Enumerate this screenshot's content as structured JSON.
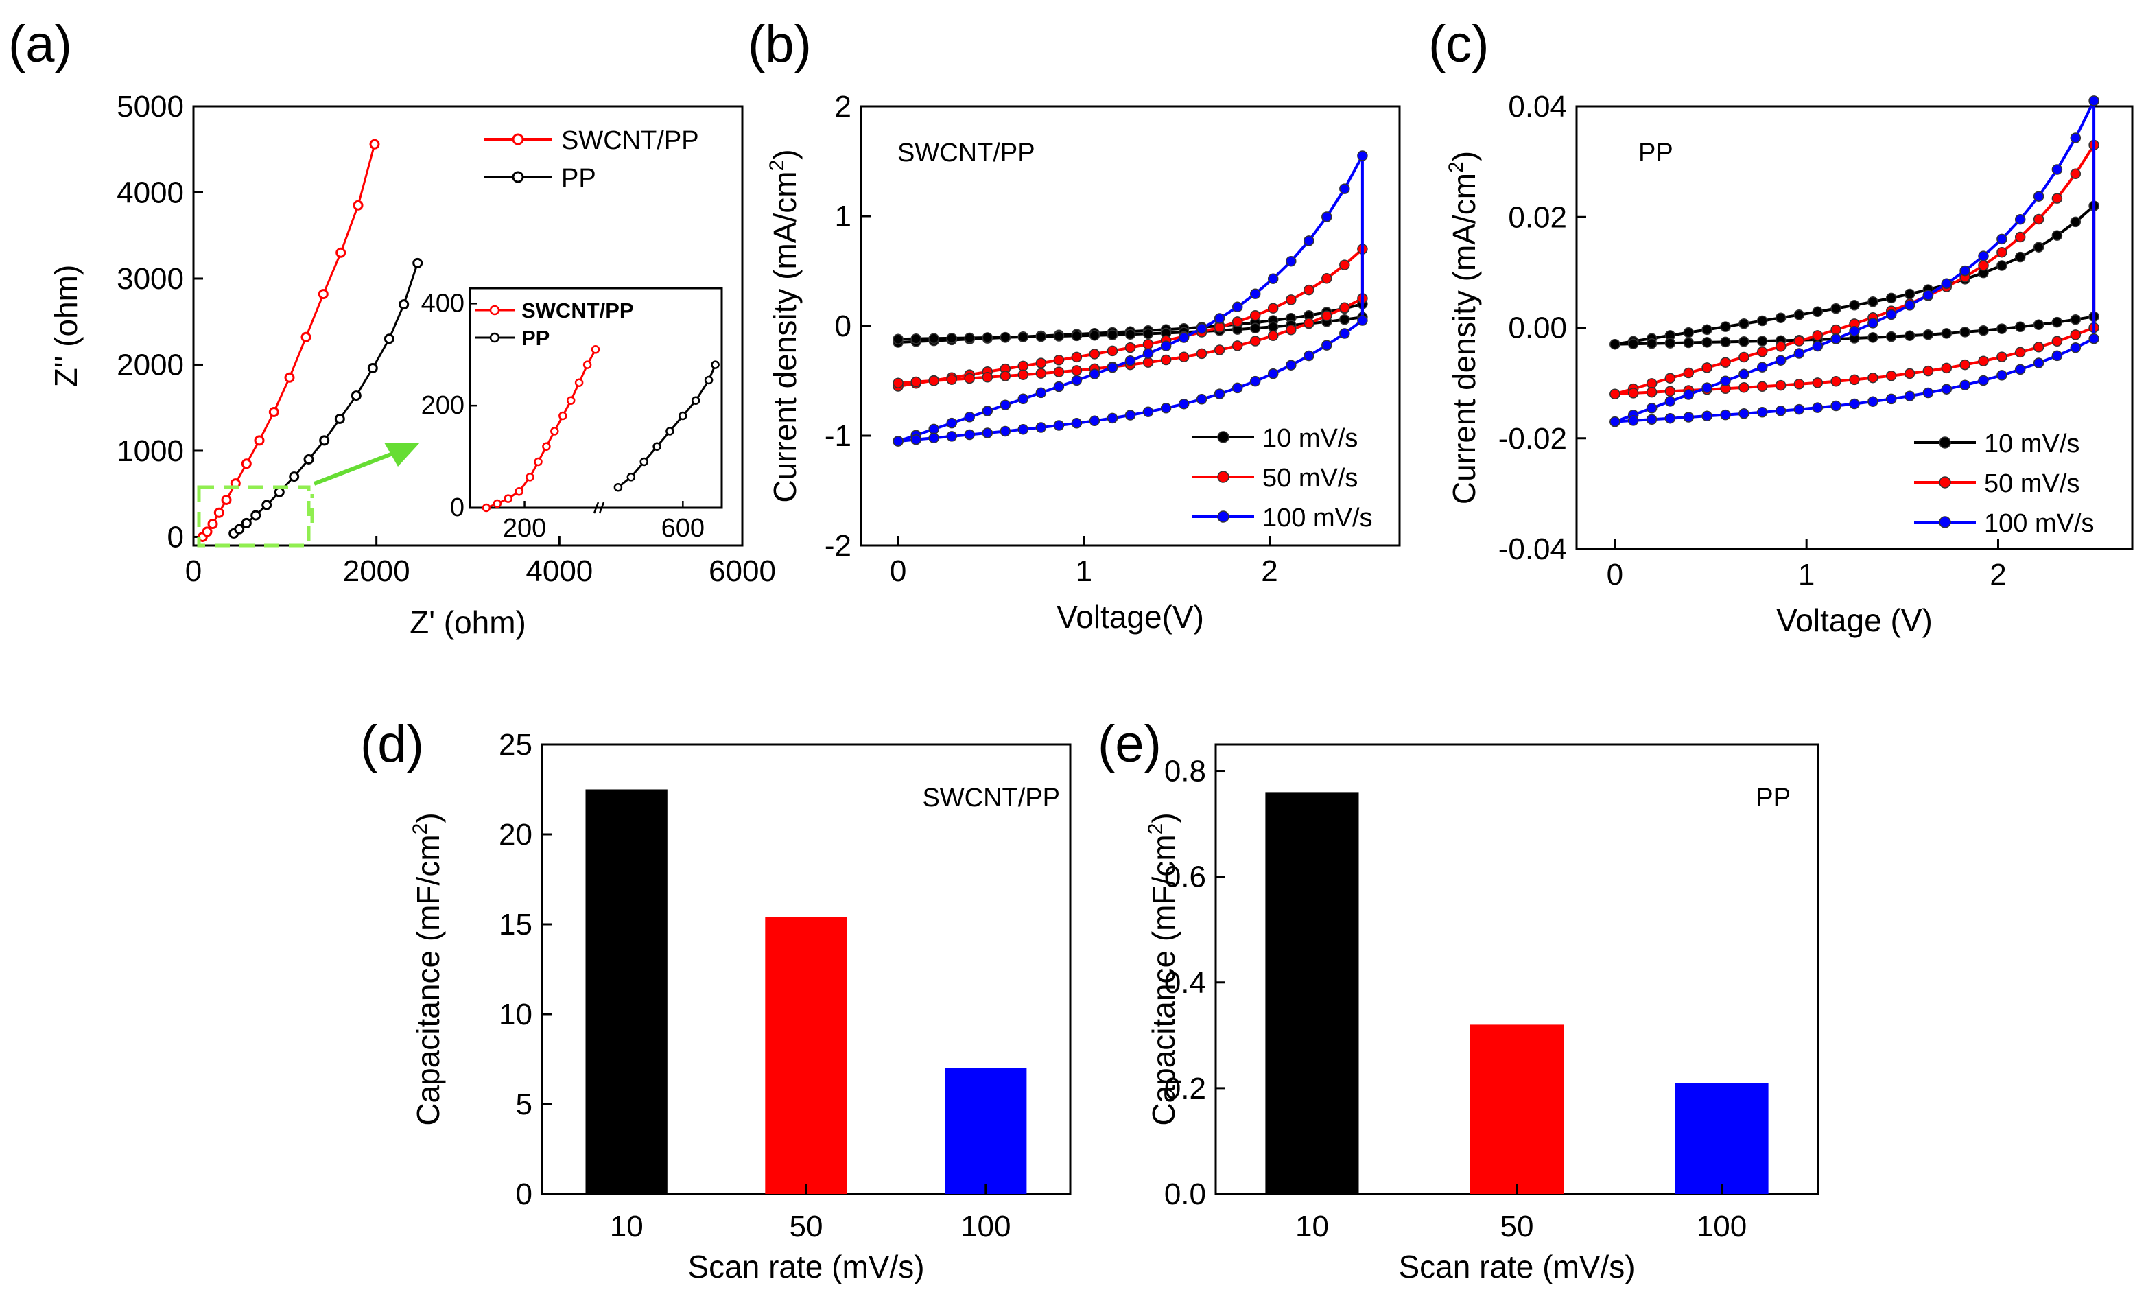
{
  "chart_data": [
    {
      "id": "a",
      "type": "line",
      "panel_label": "(a)",
      "xlabel": "Z' (ohm)",
      "ylabel": "Z'' (ohm)",
      "xlim": [
        0,
        6000
      ],
      "ylim": [
        -100,
        5000
      ],
      "xticks": [
        "0",
        "2000",
        "4000",
        "6000"
      ],
      "yticks": [
        "0",
        "1000",
        "2000",
        "3000",
        "4000",
        "5000"
      ],
      "legend_position": "top-right",
      "series": [
        {
          "name": "SWCNT/PP",
          "color": "#ff0000",
          "marker": "circle",
          "x": [
            100,
            150,
            210,
            280,
            360,
            460,
            580,
            720,
            880,
            1050,
            1230,
            1420,
            1610,
            1800,
            1980
          ],
          "y": [
            0,
            60,
            150,
            280,
            430,
            620,
            850,
            1120,
            1450,
            1850,
            2320,
            2820,
            3300,
            3850,
            4560
          ]
        },
        {
          "name": "PP",
          "color": "#000000",
          "marker": "circle",
          "x": [
            440,
            500,
            580,
            680,
            800,
            940,
            1100,
            1260,
            1430,
            1600,
            1780,
            1960,
            2140,
            2300,
            2450
          ],
          "y": [
            40,
            90,
            160,
            250,
            370,
            520,
            700,
            900,
            1120,
            1370,
            1640,
            1960,
            2300,
            2700,
            3180
          ]
        }
      ],
      "inset": {
        "xticks": [
          "200",
          "600"
        ],
        "yticks": [
          "0",
          "200",
          "400"
        ],
        "ylim": [
          0,
          430
        ],
        "axis_break": true,
        "series": [
          {
            "name": "SWCNT/PP",
            "color": "#ff0000",
            "x": [
              130,
              150,
              170,
              190,
              210,
              225,
              240,
              255,
              270,
              285,
              300,
              315,
              330
            ],
            "y": [
              0,
              8,
              18,
              32,
              60,
              90,
              120,
              150,
              180,
              210,
              245,
              280,
              310
            ]
          },
          {
            "name": "PP",
            "color": "#000000",
            "x": [
              500,
              520,
              540,
              560,
              580,
              600,
              620,
              640,
              650
            ],
            "y": [
              40,
              60,
              90,
              120,
              150,
              180,
              210,
              250,
              280
            ]
          }
        ]
      }
    },
    {
      "id": "b",
      "type": "line",
      "panel_label": "(b)",
      "annotation": "SWCNT/PP",
      "xlabel": "Voltage(V)",
      "ylabel": "Current density (mA/cm",
      "ylabel_sup": "2",
      "ylabel_tail": ")",
      "xlim": [
        -0.2,
        2.7
      ],
      "ylim": [
        -2,
        2
      ],
      "xticks": [
        "0",
        "1",
        "2"
      ],
      "yticks": [
        "-2",
        "-1",
        "0",
        "1",
        "2"
      ],
      "legend_position": "bottom-right",
      "series": [
        {
          "name": "10 mV/s",
          "color": "#000000",
          "anodic_start": -0.15,
          "anodic_end": 0.2,
          "cathodic_end": 0.08,
          "cathodic_start": -0.12
        },
        {
          "name": "50 mV/s",
          "color": "#ff0000",
          "anodic_start": -0.55,
          "anodic_end": 0.7,
          "cathodic_end": 0.25,
          "cathodic_start": -0.52
        },
        {
          "name": "100 mV/s",
          "color": "#0000ff",
          "anodic_start": -1.05,
          "anodic_end": 1.55,
          "cathodic_end": 0.05,
          "cathodic_start": -1.05
        }
      ]
    },
    {
      "id": "c",
      "type": "line",
      "panel_label": "(c)",
      "annotation": "PP",
      "xlabel": "Voltage (V)",
      "ylabel": "Current density (mA/cm",
      "ylabel_sup": "2",
      "ylabel_tail": ")",
      "xlim": [
        -0.2,
        2.7
      ],
      "ylim": [
        -0.04,
        0.04
      ],
      "xticks": [
        "0",
        "1",
        "2"
      ],
      "yticks": [
        "-0.04",
        "-0.02",
        "0.00",
        "0.02",
        "0.04"
      ],
      "legend_position": "bottom-right",
      "series": [
        {
          "name": "10 mV/s",
          "color": "#000000",
          "anodic_start": -0.003,
          "anodic_end": 0.022,
          "cathodic_end": 0.002,
          "cathodic_start": -0.003
        },
        {
          "name": "50 mV/s",
          "color": "#ff0000",
          "anodic_start": -0.012,
          "anodic_end": 0.033,
          "cathodic_end": 0.0,
          "cathodic_start": -0.012
        },
        {
          "name": "100 mV/s",
          "color": "#0000ff",
          "anodic_start": -0.017,
          "anodic_end": 0.041,
          "cathodic_end": -0.002,
          "cathodic_start": -0.017
        }
      ]
    },
    {
      "id": "d",
      "type": "bar",
      "panel_label": "(d)",
      "annotation": "SWCNT/PP",
      "xlabel": "Scan rate (mV/s)",
      "ylabel": "Capacitance (mF/cm",
      "ylabel_sup": "2",
      "ylabel_tail": ")",
      "categories": [
        "10",
        "50",
        "100"
      ],
      "values": [
        22.5,
        15.4,
        7.0
      ],
      "colors": [
        "#000000",
        "#ff0000",
        "#0000ff"
      ],
      "ylim": [
        0,
        25
      ],
      "yticks": [
        "0",
        "5",
        "10",
        "15",
        "20",
        "25"
      ]
    },
    {
      "id": "e",
      "type": "bar",
      "panel_label": "(e)",
      "annotation": "PP",
      "xlabel": "Scan rate (mV/s)",
      "ylabel": "Capacitance (mF/cm",
      "ylabel_sup": "2",
      "ylabel_tail": ")",
      "categories": [
        "10",
        "50",
        "100"
      ],
      "values": [
        0.76,
        0.32,
        0.21
      ],
      "colors": [
        "#000000",
        "#ff0000",
        "#0000ff"
      ],
      "ylim": [
        0,
        0.85
      ],
      "yticks": [
        "0.0",
        "0.2",
        "0.4",
        "0.6",
        "0.8"
      ]
    }
  ]
}
